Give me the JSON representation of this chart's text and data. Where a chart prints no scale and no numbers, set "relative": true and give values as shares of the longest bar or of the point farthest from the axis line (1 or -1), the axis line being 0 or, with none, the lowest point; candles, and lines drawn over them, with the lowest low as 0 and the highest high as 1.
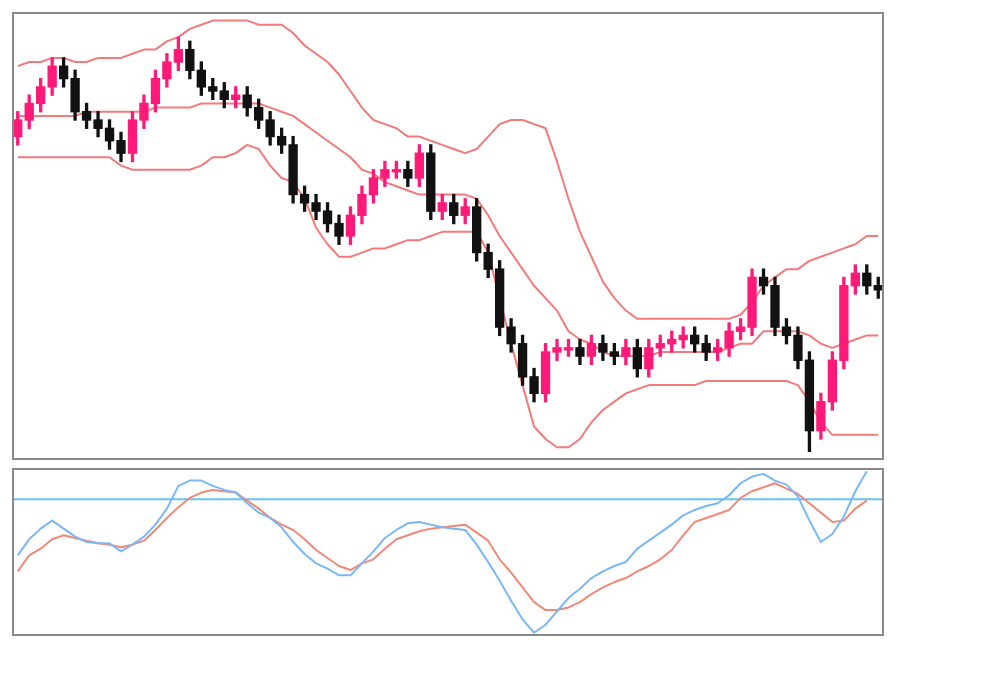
{
  "chart_data": [
    {
      "type": "candlestick",
      "relative": true,
      "categories": [
        null,
        null,
        null,
        null,
        null,
        null,
        null,
        null,
        null,
        null,
        null,
        null,
        null,
        null,
        null,
        null,
        null,
        null,
        null,
        null,
        null,
        null,
        null,
        null,
        null,
        null,
        null,
        null,
        null,
        null,
        null,
        null,
        null,
        null,
        null,
        null,
        null,
        null,
        null,
        null,
        null,
        null,
        null,
        null,
        null,
        null,
        null,
        null,
        null,
        null,
        null,
        null,
        null,
        null,
        null,
        null,
        null,
        null,
        null,
        null,
        null,
        null,
        null,
        null,
        null,
        null,
        null,
        null,
        null,
        null,
        null,
        null,
        null,
        null,
        null,
        null
      ],
      "ohlc": [
        [
          0.76,
          0.82,
          0.74,
          0.8
        ],
        [
          0.8,
          0.86,
          0.78,
          0.84
        ],
        [
          0.84,
          0.9,
          0.82,
          0.88
        ],
        [
          0.88,
          0.95,
          0.86,
          0.93
        ],
        [
          0.93,
          0.95,
          0.88,
          0.9
        ],
        [
          0.9,
          0.92,
          0.8,
          0.82
        ],
        [
          0.82,
          0.84,
          0.78,
          0.8
        ],
        [
          0.8,
          0.82,
          0.76,
          0.78
        ],
        [
          0.78,
          0.8,
          0.73,
          0.75
        ],
        [
          0.75,
          0.77,
          0.7,
          0.72
        ],
        [
          0.72,
          0.82,
          0.7,
          0.8
        ],
        [
          0.8,
          0.86,
          0.78,
          0.84
        ],
        [
          0.84,
          0.92,
          0.82,
          0.9
        ],
        [
          0.9,
          0.96,
          0.88,
          0.94
        ],
        [
          0.94,
          1,
          0.92,
          0.97
        ],
        [
          0.97,
          0.99,
          0.9,
          0.92
        ],
        [
          0.92,
          0.94,
          0.86,
          0.88
        ],
        [
          0.88,
          0.9,
          0.85,
          0.87
        ],
        [
          0.87,
          0.89,
          0.83,
          0.85
        ],
        [
          0.85,
          0.88,
          0.83,
          0.86
        ],
        [
          0.86,
          0.88,
          0.81,
          0.83
        ],
        [
          0.83,
          0.85,
          0.78,
          0.8
        ],
        [
          0.8,
          0.82,
          0.74,
          0.76
        ],
        [
          0.76,
          0.78,
          0.72,
          0.74
        ],
        [
          0.74,
          0.76,
          0.6,
          0.62
        ],
        [
          0.62,
          0.64,
          0.58,
          0.6
        ],
        [
          0.6,
          0.62,
          0.56,
          0.58
        ],
        [
          0.58,
          0.6,
          0.53,
          0.55
        ],
        [
          0.55,
          0.57,
          0.5,
          0.52
        ],
        [
          0.52,
          0.59,
          0.5,
          0.57
        ],
        [
          0.57,
          0.64,
          0.55,
          0.62
        ],
        [
          0.62,
          0.68,
          0.6,
          0.66
        ],
        [
          0.66,
          0.7,
          0.64,
          0.68
        ],
        [
          0.68,
          0.7,
          0.66,
          0.68
        ],
        [
          0.68,
          0.7,
          0.64,
          0.66
        ],
        [
          0.66,
          0.74,
          0.64,
          0.72
        ],
        [
          0.72,
          0.74,
          0.56,
          0.58
        ],
        [
          0.58,
          0.62,
          0.56,
          0.6
        ],
        [
          0.6,
          0.62,
          0.55,
          0.57
        ],
        [
          0.57,
          0.61,
          0.55,
          0.59
        ],
        [
          0.59,
          0.61,
          0.46,
          0.48
        ],
        [
          0.48,
          0.5,
          0.42,
          0.44
        ],
        [
          0.44,
          0.46,
          0.28,
          0.3
        ],
        [
          0.3,
          0.32,
          0.24,
          0.26
        ],
        [
          0.26,
          0.28,
          0.16,
          0.18
        ],
        [
          0.18,
          0.2,
          0.12,
          0.14
        ],
        [
          0.14,
          0.26,
          0.12,
          0.24
        ],
        [
          0.24,
          0.27,
          0.22,
          0.25
        ],
        [
          0.25,
          0.27,
          0.23,
          0.25
        ],
        [
          0.25,
          0.27,
          0.21,
          0.23
        ],
        [
          0.23,
          0.28,
          0.21,
          0.26
        ],
        [
          0.26,
          0.28,
          0.22,
          0.24
        ],
        [
          0.24,
          0.26,
          0.21,
          0.23
        ],
        [
          0.23,
          0.27,
          0.21,
          0.25
        ],
        [
          0.25,
          0.27,
          0.18,
          0.2
        ],
        [
          0.2,
          0.27,
          0.18,
          0.25
        ],
        [
          0.25,
          0.28,
          0.23,
          0.26
        ],
        [
          0.26,
          0.29,
          0.24,
          0.27
        ],
        [
          0.27,
          0.3,
          0.25,
          0.28
        ],
        [
          0.28,
          0.3,
          0.24,
          0.26
        ],
        [
          0.26,
          0.28,
          0.22,
          0.24
        ],
        [
          0.24,
          0.27,
          0.22,
          0.25
        ],
        [
          0.25,
          0.31,
          0.23,
          0.29
        ],
        [
          0.29,
          0.32,
          0.27,
          0.3
        ],
        [
          0.3,
          0.44,
          0.28,
          0.42
        ],
        [
          0.42,
          0.44,
          0.38,
          0.4
        ],
        [
          0.4,
          0.42,
          0.28,
          0.3
        ],
        [
          0.3,
          0.32,
          0.26,
          0.28
        ],
        [
          0.28,
          0.3,
          0.2,
          0.22
        ],
        [
          0.22,
          0.24,
          0,
          0.05
        ],
        [
          0.05,
          0.14,
          0.03,
          0.12
        ],
        [
          0.12,
          0.24,
          0.1,
          0.22
        ],
        [
          0.22,
          0.42,
          0.2,
          0.4
        ],
        [
          0.4,
          0.45,
          0.38,
          0.43
        ],
        [
          0.43,
          0.45,
          0.38,
          0.4
        ],
        [
          0.4,
          0.42,
          0.37,
          0.39
        ]
      ],
      "colors": [
        "#ff1a7a",
        "#ff1a7a",
        "#ff1a7a",
        "#ff1a7a",
        "#111111",
        "#111111",
        "#111111",
        "#111111",
        "#111111",
        "#111111",
        "#ff1a7a",
        "#ff1a7a",
        "#ff1a7a",
        "#ff1a7a",
        "#ff1a7a",
        "#111111",
        "#111111",
        "#111111",
        "#111111",
        "#ff1a7a",
        "#111111",
        "#111111",
        "#111111",
        "#111111",
        "#111111",
        "#111111",
        "#111111",
        "#111111",
        "#111111",
        "#ff1a7a",
        "#ff1a7a",
        "#ff1a7a",
        "#ff1a7a",
        "#ff1a7a",
        "#111111",
        "#ff1a7a",
        "#111111",
        "#ff1a7a",
        "#111111",
        "#ff1a7a",
        "#111111",
        "#111111",
        "#111111",
        "#111111",
        "#111111",
        "#111111",
        "#ff1a7a",
        "#ff1a7a",
        "#ff1a7a",
        "#111111",
        "#ff1a7a",
        "#111111",
        "#111111",
        "#ff1a7a",
        "#111111",
        "#ff1a7a",
        "#ff1a7a",
        "#ff1a7a",
        "#ff1a7a",
        "#111111",
        "#111111",
        "#ff1a7a",
        "#ff1a7a",
        "#ff1a7a",
        "#ff1a7a",
        "#111111",
        "#111111",
        "#111111",
        "#111111",
        "#111111",
        "#ff1a7a",
        "#ff1a7a",
        "#ff1a7a",
        "#ff1a7a",
        "#111111",
        "#111111"
      ],
      "series": [
        {
          "type": "line",
          "color": "#f27a7a",
          "values": [
            0.93,
            0.94,
            0.94,
            0.95,
            0.95,
            0.94,
            0.94,
            0.95,
            0.95,
            0.95,
            0.96,
            0.97,
            0.97,
            0.99,
            1.0,
            1.02,
            1.03,
            1.04,
            1.04,
            1.04,
            1.04,
            1.03,
            1.03,
            1.03,
            1.01,
            0.98,
            0.96,
            0.94,
            0.91,
            0.87,
            0.83,
            0.8,
            0.79,
            0.78,
            0.76,
            0.76,
            0.75,
            0.74,
            0.73,
            0.72,
            0.73,
            0.76,
            0.79,
            0.8,
            0.8,
            0.79,
            0.78,
            0.7,
            0.61,
            0.53,
            0.47,
            0.41,
            0.37,
            0.34,
            0.32,
            0.32,
            0.32,
            0.32,
            0.32,
            0.32,
            0.32,
            0.32,
            0.32,
            0.33,
            0.36,
            0.4,
            0.42,
            0.44,
            0.44,
            0.46,
            0.47,
            0.48,
            0.49,
            0.5,
            0.52,
            0.52
          ]
        },
        {
          "type": "line",
          "color": "#f27a7a",
          "values": [
            0.81,
            0.81,
            0.81,
            0.81,
            0.81,
            0.81,
            0.82,
            0.82,
            0.82,
            0.82,
            0.82,
            0.82,
            0.83,
            0.83,
            0.83,
            0.83,
            0.84,
            0.84,
            0.84,
            0.84,
            0.84,
            0.84,
            0.83,
            0.82,
            0.81,
            0.79,
            0.77,
            0.75,
            0.73,
            0.71,
            0.68,
            0.67,
            0.65,
            0.64,
            0.63,
            0.62,
            0.62,
            0.62,
            0.62,
            0.62,
            0.61,
            0.57,
            0.52,
            0.48,
            0.44,
            0.4,
            0.37,
            0.34,
            0.29,
            0.27,
            0.26,
            0.24,
            0.23,
            0.23,
            0.23,
            0.23,
            0.24,
            0.24,
            0.24,
            0.24,
            0.24,
            0.24,
            0.25,
            0.26,
            0.26,
            0.29,
            0.29,
            0.29,
            0.29,
            0.28,
            0.26,
            0.25,
            0.26,
            0.27,
            0.28,
            0.28
          ]
        },
        {
          "type": "line",
          "color": "#f27a7a",
          "values": [
            0.71,
            0.71,
            0.71,
            0.71,
            0.71,
            0.71,
            0.71,
            0.71,
            0.71,
            0.69,
            0.68,
            0.68,
            0.68,
            0.68,
            0.68,
            0.68,
            0.69,
            0.71,
            0.71,
            0.72,
            0.74,
            0.73,
            0.69,
            0.66,
            0.65,
            0.61,
            0.54,
            0.5,
            0.47,
            0.47,
            0.48,
            0.49,
            0.49,
            0.5,
            0.51,
            0.51,
            0.52,
            0.53,
            0.53,
            0.53,
            0.53,
            0.48,
            0.37,
            0.26,
            0.16,
            0.06,
            0.03,
            0.01,
            0.01,
            0.03,
            0.07,
            0.1,
            0.12,
            0.14,
            0.15,
            0.16,
            0.16,
            0.16,
            0.16,
            0.16,
            0.17,
            0.17,
            0.17,
            0.17,
            0.17,
            0.17,
            0.17,
            0.17,
            0.16,
            0.12,
            0.07,
            0.04,
            0.04,
            0.04,
            0.04,
            0.04
          ]
        }
      ]
    },
    {
      "type": "line",
      "relative": true,
      "categories": [
        null,
        null,
        null,
        null,
        null,
        null,
        null,
        null,
        null,
        null,
        null,
        null,
        null,
        null,
        null,
        null,
        null,
        null,
        null,
        null,
        null,
        null,
        null,
        null,
        null,
        null,
        null,
        null,
        null,
        null,
        null,
        null,
        null,
        null,
        null,
        null,
        null,
        null,
        null,
        null,
        null,
        null,
        null,
        null,
        null,
        null,
        null,
        null,
        null,
        null,
        null,
        null,
        null,
        null,
        null,
        null,
        null,
        null,
        null,
        null,
        null,
        null,
        null,
        null,
        null,
        null,
        null,
        null,
        null,
        null,
        null,
        null,
        null,
        null,
        null,
        null
      ],
      "series": [
        {
          "color": "#7ab8f5",
          "values": [
            -0.42,
            -0.3,
            -0.22,
            -0.16,
            -0.22,
            -0.28,
            -0.32,
            -0.33,
            -0.33,
            -0.39,
            -0.34,
            -0.28,
            -0.19,
            -0.07,
            0.1,
            0.14,
            0.14,
            0.1,
            0.07,
            0.05,
            -0.03,
            -0.1,
            -0.14,
            -0.21,
            -0.32,
            -0.41,
            -0.48,
            -0.52,
            -0.57,
            -0.57,
            -0.48,
            -0.39,
            -0.29,
            -0.23,
            -0.18,
            -0.17,
            -0.19,
            -0.21,
            -0.22,
            -0.23,
            -0.34,
            -0.47,
            -0.61,
            -0.76,
            -0.9,
            -1,
            -0.94,
            -0.84,
            -0.74,
            -0.67,
            -0.59,
            -0.54,
            -0.5,
            -0.47,
            -0.37,
            -0.31,
            -0.25,
            -0.19,
            -0.12,
            -0.08,
            -0.05,
            -0.03,
            0.03,
            0.12,
            0.17,
            0.19,
            0.14,
            0.11,
            0.02,
            -0.16,
            -0.32,
            -0.26,
            -0.13,
            0.06,
            0.21,
            null
          ]
        },
        {
          "color": "#f08a78",
          "values": [
            -0.54,
            -0.42,
            -0.37,
            -0.3,
            -0.27,
            -0.29,
            -0.31,
            -0.33,
            -0.34,
            -0.36,
            -0.34,
            -0.31,
            -0.23,
            -0.14,
            -0.06,
            0.01,
            0.05,
            0.07,
            0.06,
            0.05,
            -0.01,
            -0.07,
            -0.14,
            -0.19,
            -0.23,
            -0.3,
            -0.38,
            -0.44,
            -0.5,
            -0.53,
            -0.48,
            -0.45,
            -0.37,
            -0.3,
            -0.27,
            -0.24,
            -0.22,
            -0.21,
            -0.2,
            -0.19,
            -0.25,
            -0.31,
            -0.45,
            -0.55,
            -0.66,
            -0.77,
            -0.83,
            -0.83,
            -0.81,
            -0.77,
            -0.71,
            -0.66,
            -0.62,
            -0.59,
            -0.54,
            -0.5,
            -0.45,
            -0.38,
            -0.27,
            -0.17,
            -0.14,
            -0.11,
            -0.08,
            0.01,
            0.06,
            0.09,
            0.12,
            0.08,
            0.04,
            -0.03,
            -0.1,
            -0.17,
            -0.16,
            -0.07,
            -0.01,
            null
          ]
        }
      ],
      "ref_lines": [
        {
          "axis": "y",
          "value": 0,
          "color": "#66c4f0"
        }
      ]
    }
  ]
}
